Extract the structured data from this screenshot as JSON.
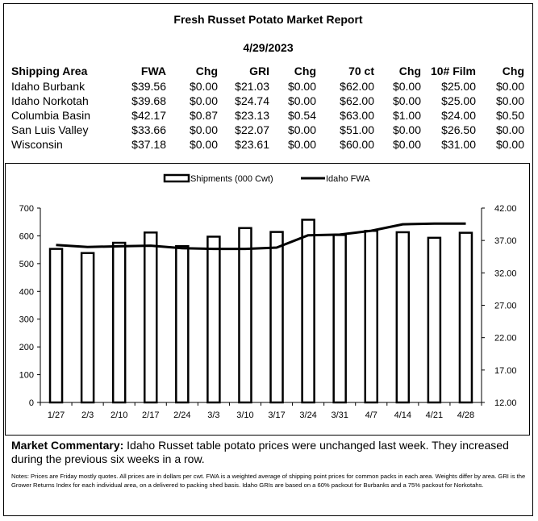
{
  "report": {
    "title": "Fresh Russet Potato Market Report",
    "date": "4/29/2023"
  },
  "table": {
    "headers": [
      "Shipping Area",
      "FWA",
      "Chg",
      "GRI",
      "Chg",
      "70 ct",
      "Chg",
      "10# Film",
      "Chg"
    ],
    "rows": [
      [
        "Idaho Burbank",
        "$39.56",
        "$0.00",
        "$21.03",
        "$0.00",
        "$62.00",
        "$0.00",
        "$25.00",
        "$0.00"
      ],
      [
        "Idaho Norkotah",
        "$39.68",
        "$0.00",
        "$24.74",
        "$0.00",
        "$62.00",
        "$0.00",
        "$25.00",
        "$0.00"
      ],
      [
        "Columbia Basin",
        "$42.17",
        "$0.87",
        "$23.13",
        "$0.54",
        "$63.00",
        "$1.00",
        "$24.00",
        "$0.50"
      ],
      [
        "San Luis Valley",
        "$33.66",
        "$0.00",
        "$22.07",
        "$0.00",
        "$51.00",
        "$0.00",
        "$26.50",
        "$0.00"
      ],
      [
        "Wisconsin",
        "$37.18",
        "$0.00",
        "$23.61",
        "$0.00",
        "$60.00",
        "$0.00",
        "$31.00",
        "$0.00"
      ]
    ]
  },
  "chart_data": {
    "type": "bar",
    "categories": [
      "1/27",
      "2/3",
      "2/10",
      "2/17",
      "2/24",
      "3/3",
      "3/10",
      "3/17",
      "3/24",
      "3/31",
      "4/7",
      "4/14",
      "4/21",
      "4/28"
    ],
    "series": [
      {
        "name": "Shipments (000 Cwt)",
        "type": "bar",
        "axis": "left",
        "values": [
          553,
          538,
          575,
          612,
          563,
          597,
          628,
          614,
          658,
          603,
          618,
          613,
          593,
          611
        ]
      },
      {
        "name": "Idaho FWA",
        "type": "line",
        "axis": "right",
        "values": [
          36.3,
          36.0,
          36.1,
          36.2,
          35.8,
          35.7,
          35.7,
          35.9,
          37.8,
          37.9,
          38.5,
          39.5,
          39.6,
          39.6
        ]
      }
    ],
    "ylim_left": [
      0,
      700
    ],
    "left_ticks": [
      "0",
      "100",
      "200",
      "300",
      "400",
      "500",
      "600",
      "700"
    ],
    "ylim_right": [
      12.0,
      42.0
    ],
    "right_ticks": [
      "12.00",
      "17.00",
      "22.00",
      "27.00",
      "32.00",
      "37.00",
      "42.00"
    ],
    "legend_position": "top-center",
    "grid": false
  },
  "commentary": {
    "lead": "Market Commentary:",
    "text": " Idaho Russet table potato prices were unchanged last week. They increased during the previous six weeks in a row."
  },
  "notes": "Notes: Prices are Friday mostly quotes. All prices are in dollars per cwt. FWA is a weighted average of shipping point prices for  common packs in each area. Weights differ by area. GRI is the Grower Returns Index for each individual area, on a delivered to packing shed basis. Idaho GRIs are based on a 60% packout for Burbanks and a 75% packout for Norkotahs."
}
